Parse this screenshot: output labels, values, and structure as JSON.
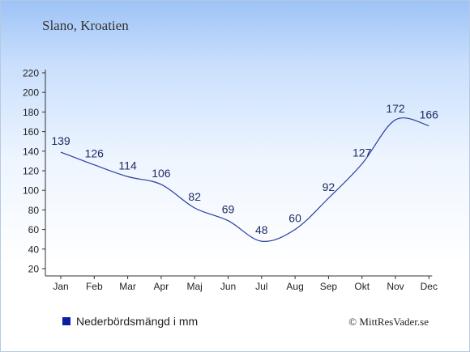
{
  "title": "Slano, Kroatien",
  "legend_label": "Nederbördsmängd i mm",
  "credit": "© MittResVader.se",
  "colors": {
    "line": "#2a3e9e",
    "swatch": "#0b1fa3",
    "axis": "#333333",
    "label": "#1e2b63"
  },
  "chart_data": {
    "type": "line",
    "categories": [
      "Jan",
      "Feb",
      "Mar",
      "Apr",
      "Maj",
      "Jun",
      "Jul",
      "Aug",
      "Sep",
      "Okt",
      "Nov",
      "Dec"
    ],
    "series": [
      {
        "name": "Nederbördsmängd i mm",
        "values": [
          139,
          126,
          114,
          106,
          82,
          69,
          48,
          60,
          92,
          127,
          172,
          166
        ]
      }
    ],
    "ylim": [
      20,
      220
    ],
    "yticks": [
      20,
      40,
      60,
      80,
      100,
      120,
      140,
      160,
      180,
      200,
      220
    ],
    "grid": false,
    "legend": "bottom-left"
  }
}
